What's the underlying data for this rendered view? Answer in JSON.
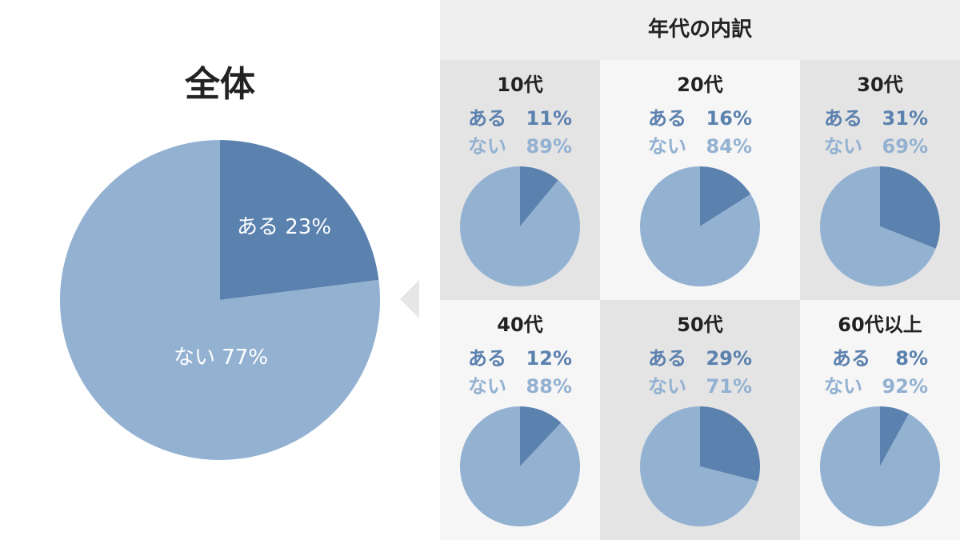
{
  "overall": {
    "title": "全体",
    "label_aru": "ある 23%",
    "label_nai": "ない 77%"
  },
  "breakdown_header": "年代の内訳",
  "colors": {
    "aru": "#5b81ae",
    "nai": "#93b1d1",
    "label_aru": "#5b81ae",
    "label_nai": "#93b1d1"
  },
  "legend_labels": {
    "aru": "ある",
    "nai": "ない"
  },
  "groups": [
    {
      "title": "10代",
      "aru_pct": "11%",
      "nai_pct": "89%"
    },
    {
      "title": "20代",
      "aru_pct": "16%",
      "nai_pct": "84%"
    },
    {
      "title": "30代",
      "aru_pct": "31%",
      "nai_pct": "69%"
    },
    {
      "title": "40代",
      "aru_pct": "12%",
      "nai_pct": "88%"
    },
    {
      "title": "50代",
      "aru_pct": "29%",
      "nai_pct": "71%"
    },
    {
      "title": "60代以上",
      "aru_pct": "8%",
      "nai_pct": "92%"
    }
  ],
  "chart_data": [
    {
      "type": "pie",
      "title": "全体",
      "categories": [
        "ある",
        "ない"
      ],
      "values": [
        23,
        77
      ]
    },
    {
      "type": "pie",
      "title": "10代",
      "categories": [
        "ある",
        "ない"
      ],
      "values": [
        11,
        89
      ]
    },
    {
      "type": "pie",
      "title": "20代",
      "categories": [
        "ある",
        "ない"
      ],
      "values": [
        16,
        84
      ]
    },
    {
      "type": "pie",
      "title": "30代",
      "categories": [
        "ある",
        "ない"
      ],
      "values": [
        31,
        69
      ]
    },
    {
      "type": "pie",
      "title": "40代",
      "categories": [
        "ある",
        "ない"
      ],
      "values": [
        12,
        88
      ]
    },
    {
      "type": "pie",
      "title": "50代",
      "categories": [
        "ある",
        "ない"
      ],
      "values": [
        29,
        71
      ]
    },
    {
      "type": "pie",
      "title": "60代以上",
      "categories": [
        "ある",
        "ない"
      ],
      "values": [
        8,
        92
      ]
    }
  ]
}
